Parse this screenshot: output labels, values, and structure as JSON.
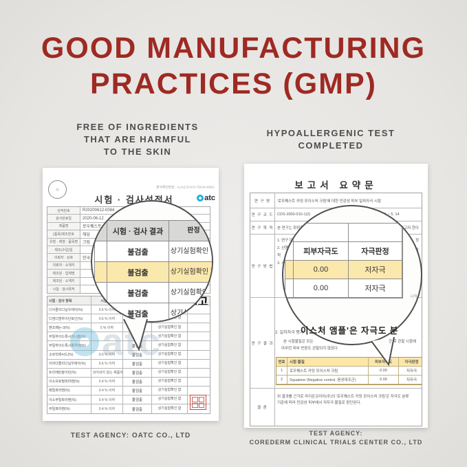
{
  "title": {
    "line1": "GOOD MANUFACTURING",
    "line2": "PRACTICES (GMP)"
  },
  "captions": {
    "left": [
      "FREE OF INGREDIENTS",
      "THAT ARE HARMFUL",
      "TO THE SKIN"
    ],
    "right": [
      "HYPOALLERGENIC TEST",
      "COMPLETED"
    ]
  },
  "colors": {
    "headline_red": "#9e2a23",
    "caption_gray": "#4c4c4c",
    "highlight_yellow": "#fbe8ac",
    "table_header_gray": "#d8d8d6",
    "logo_blue": "#1daee4",
    "stamp_red": "#c6493d"
  },
  "left_doc": {
    "confirm_no": "문서확인번호 : LUAZ-EAVS-TDO4-639G",
    "title": "시험 · 검사성적서",
    "logo_text": "atc",
    "watermark_text": "atc",
    "info_rows": [
      {
        "label": "성적번호",
        "value": "R20200612-0084"
      },
      {
        "label": "검사완료일",
        "value": "2020-06-12"
      },
      {
        "label": "제품명",
        "value": "로우퀘스트 카"
      },
      {
        "label": "(품목)제조번호",
        "value": "해당"
      },
      {
        "label": "유형 · 제형 · 품목명",
        "value": "크림"
      },
      {
        "label": "제조(수입)일",
        "value": ""
      },
      {
        "label": "의뢰자 · 상호",
        "value": "한국"
      },
      {
        "label": "의뢰자 · 소재지",
        "value": ""
      },
      {
        "label": "제조원 · 업체명",
        "value": ""
      },
      {
        "label": "제조원 · 소재지",
        "value": ""
      },
      {
        "label": "시험 · 검사목적",
        "value": ""
      }
    ],
    "items_table": {
      "headers": [
        "시험 · 검사 항목",
        "시험규격",
        "시험 · 검사 결과",
        "판정",
        "비고"
      ],
      "rows": [
        {
          "name": "디아졸리디닐우레아(%)",
          "spec": "0.5 % 이하",
          "result": "불검출",
          "judge": "상기실험확인 함"
        },
        {
          "name": "디엠디엠하이단토인(%)",
          "spec": "0.6 % 이하",
          "result": "불검출",
          "judge": "상기실험확인 함"
        },
        {
          "name": "벤조페논-3(%)",
          "spec": "5 % 이하",
          "result": "불검출",
          "judge": "상기실험확인 함"
        },
        {
          "name": "부틸하이드록시아니솔(%)",
          "spec": "-",
          "result": "불검출",
          "judge": "상기실험확인 함"
        },
        {
          "name": "부틸하이드록시톨루엔(%)",
          "spec": "-",
          "result": "불검출",
          "judge": "상기실험확인 함"
        },
        {
          "name": "소르빅애씨드(%)",
          "spec": "0.6 % 이하",
          "result": "불검출",
          "judge": "상기실험확인 함"
        },
        {
          "name": "이미다졸리디닐우레아(%)",
          "spec": "0.6 % 이하",
          "result": "불검출",
          "judge": "상기실험확인 함"
        },
        {
          "name": "트리에탄올아민(%)",
          "spec": "사용 후 씻어내지 않는 제품에 2.5 %",
          "result": "불검출",
          "judge": "상기실험확인 함"
        },
        {
          "name": "이소프로필파라벤(%)",
          "spec": "0.4 % 이하",
          "result": "불검출",
          "judge": "상기실험확인 함"
        },
        {
          "name": "메틸파라벤(%)",
          "spec": "0.4 % 이하",
          "result": "불검출",
          "judge": "상기실험확인 함"
        },
        {
          "name": "이소부틸파라벤(%)",
          "spec": "0.4 % 이하",
          "result": "불검출",
          "judge": "상기실험확인 함"
        },
        {
          "name": "부틸파라벤(%)",
          "spec": "0.4 % 이하",
          "result": "불검출",
          "judge": "상기실험확인 함"
        }
      ]
    },
    "magnifier": {
      "col1": "시험 · 검사 결과",
      "col2": "판정",
      "rows": [
        {
          "result": "불검출",
          "judge": "상기실험확인 함",
          "highlight": false
        },
        {
          "result": "불검출",
          "judge": "상기실험확인 함",
          "highlight": true
        },
        {
          "result": "불검출",
          "judge": "상기실험확인 함",
          "highlight": false
        },
        {
          "result": "불검출",
          "judge": "상기실험확인 함",
          "highlight": false
        },
        {
          "result": "불검출",
          "judge": "상기실험확인 함",
          "highlight": false
        }
      ]
    },
    "agency": "TEST AGENCY: OATC CO., LTD"
  },
  "right_doc": {
    "title": "보고서 요약문",
    "rows": {
      "name_label": "연 구 명",
      "name": "'로우퀘스트 카밍 모이스처 크림'에 대한 민감성 피부 일차자극 시험",
      "code_label": "연 구 코 드",
      "code": "CDS-2000-010-1(2)",
      "period_label": "연구 기간",
      "period": "2020. 5. 11 ~ 5. 14",
      "purpose_label": "연 구 목 적",
      "purpose_left": "본 연구는 화장품 1종에",
      "purpose_right": "를 평가하고자 한다",
      "method_label": "연 구 방 법",
      "method_lines": [
        "1. 연구 대상 :",
        "2. 선행 방",
        "척",
        "3. 시"
      ],
      "method_frag1": "정",
      "method_frag2": "여 최종",
      "result_label": "연 구 결 과",
      "conclusion_label": "결 론",
      "conclusion1": "위 결과를 근거로 라이온코리아(주)의 '로우퀘스트 카밍 모이스처 크림'은 자극도 분류",
      "conclusion2": "기준에 따라 민감성 피부에서 저자극 물질로 판단된다."
    },
    "result": {
      "pre": "2. 일차자극 평가",
      "big": "이스처 앰플'은 자극도 분",
      "line1": "본 시험물질은 모든",
      "line1b": "간 후 관찰 시점에",
      "line2": "아무런 피부 반응도 관찰되지 않았다"
    },
    "magnifier": {
      "col1": "피부자극도",
      "col2": "자극판정",
      "fragment": "시작",
      "rows": [
        {
          "score": "0.00",
          "judge": "저자극",
          "highlight": true
        },
        {
          "score": "0.00",
          "judge": "저자극",
          "highlight": false
        }
      ]
    },
    "summary_table": {
      "headers": [
        "번호",
        "시험 물질",
        "피부자극도",
        "자극판정"
      ],
      "rows": [
        [
          "1",
          "로우퀘스트 카밍 모이스처 크림",
          "0.00",
          "저자극"
        ],
        [
          "2",
          "Squalene (Negative control, 음성대조군)",
          "0.00",
          "저자극"
        ]
      ]
    },
    "agency_line1": "TEST AGENCY:",
    "agency_line2": "COREDERM CLINICAL TRIALS CENTER CO., LTD"
  }
}
